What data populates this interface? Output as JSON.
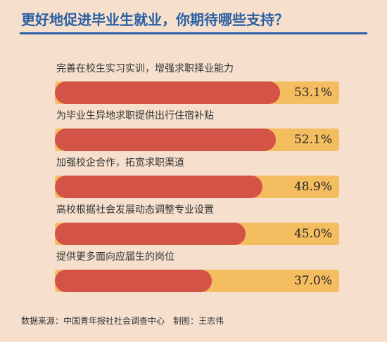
{
  "chart_data": {
    "type": "bar",
    "orientation": "horizontal",
    "title": "更好地促进毕业生就业，你期待哪些支持？",
    "categories": [
      "完善在校生实习实训，增强求职择业能力",
      "为毕业生异地求职提供出行住宿补贴",
      "加强校企合作，拓宽求职渠道",
      "高校根据社会发展动态调整专业设置",
      "提供更多面向应届生的岗位"
    ],
    "values": [
      53.1,
      52.1,
      48.9,
      45.0,
      37.0
    ],
    "value_labels": [
      "53.1%",
      "52.1%",
      "48.9%",
      "45.0%",
      "37.0%"
    ],
    "xlim": [
      0,
      67
    ],
    "colors": {
      "bar": "#d35446",
      "track": "#f4bd60",
      "title": "#2a5fa3",
      "background": "#f6e0cd"
    }
  },
  "footer": {
    "source": "数据来源：中国青年报社社会调查中心　制图：王志伟"
  }
}
